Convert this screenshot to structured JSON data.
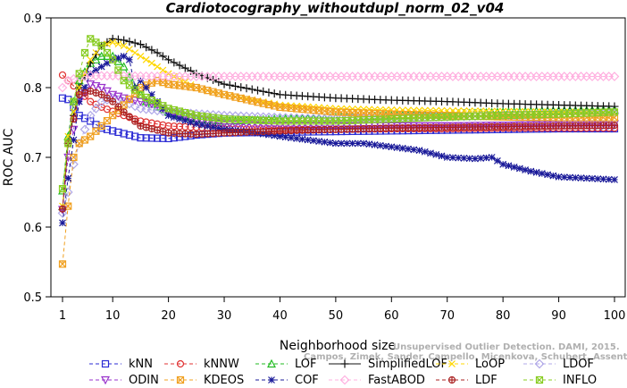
{
  "chart_data": {
    "type": "line",
    "title": "Cardiotocography_withoutdupl_norm_02_v04",
    "xlabel": "Neighborhood size",
    "ylabel": "ROC AUC",
    "xlim": [
      1,
      100
    ],
    "ylim": [
      0.5,
      0.9
    ],
    "x_ticks": [
      "1",
      "10",
      "20",
      "30",
      "40",
      "50",
      "60",
      "70",
      "80",
      "90",
      "100"
    ],
    "y_ticks": [
      "0.5",
      "0.6",
      "0.7",
      "0.8",
      "0.9"
    ],
    "grid": false,
    "legend_position": "bottom",
    "watermark": [
      "Campos, Zimek, Sander, Campello, Micenkova, Schubert, Assent, Houle",
      "Unsupervised Outlier Detection. DAMI, 2015."
    ],
    "series": [
      {
        "name": "kNN",
        "color": "#2b2bd4",
        "marker": "square",
        "dash": "4,3",
        "points": [
          [
            1,
            0.785
          ],
          [
            2,
            0.783
          ],
          [
            4,
            0.76
          ],
          [
            6,
            0.752
          ],
          [
            8,
            0.742
          ],
          [
            10,
            0.738
          ],
          [
            15,
            0.728
          ],
          [
            20,
            0.727
          ],
          [
            25,
            0.732
          ],
          [
            30,
            0.735
          ],
          [
            40,
            0.736
          ],
          [
            50,
            0.737
          ],
          [
            60,
            0.738
          ],
          [
            70,
            0.739
          ],
          [
            80,
            0.74
          ],
          [
            90,
            0.741
          ],
          [
            100,
            0.741
          ]
        ]
      },
      {
        "name": "kNNW",
        "color": "#e03030",
        "marker": "circle",
        "dash": "4,3",
        "points": [
          [
            1,
            0.818
          ],
          [
            2,
            0.81
          ],
          [
            4,
            0.795
          ],
          [
            6,
            0.78
          ],
          [
            8,
            0.772
          ],
          [
            10,
            0.766
          ],
          [
            12,
            0.76
          ],
          [
            15,
            0.752
          ],
          [
            20,
            0.745
          ],
          [
            30,
            0.741
          ],
          [
            40,
            0.74
          ],
          [
            50,
            0.74
          ],
          [
            60,
            0.741
          ],
          [
            70,
            0.741
          ],
          [
            80,
            0.742
          ],
          [
            90,
            0.742
          ],
          [
            100,
            0.742
          ]
        ]
      },
      {
        "name": "LOF",
        "color": "#22bb22",
        "marker": "triangle-up",
        "dash": "4,3",
        "points": [
          [
            1,
            0.652
          ],
          [
            2,
            0.73
          ],
          [
            3,
            0.78
          ],
          [
            4,
            0.81
          ],
          [
            6,
            0.835
          ],
          [
            8,
            0.845
          ],
          [
            10,
            0.845
          ],
          [
            12,
            0.83
          ],
          [
            14,
            0.8
          ],
          [
            16,
            0.78
          ],
          [
            20,
            0.765
          ],
          [
            25,
            0.755
          ],
          [
            30,
            0.752
          ],
          [
            40,
            0.755
          ],
          [
            50,
            0.757
          ],
          [
            60,
            0.76
          ],
          [
            70,
            0.762
          ],
          [
            80,
            0.765
          ],
          [
            90,
            0.767
          ],
          [
            100,
            0.768
          ]
        ]
      },
      {
        "name": "SimplifiedLOF",
        "color": "#111111",
        "marker": "plus",
        "dash": "",
        "points": [
          [
            1,
            0.625
          ],
          [
            2,
            0.72
          ],
          [
            4,
            0.8
          ],
          [
            6,
            0.835
          ],
          [
            8,
            0.86
          ],
          [
            10,
            0.87
          ],
          [
            12,
            0.868
          ],
          [
            15,
            0.862
          ],
          [
            18,
            0.85
          ],
          [
            20,
            0.84
          ],
          [
            25,
            0.82
          ],
          [
            30,
            0.805
          ],
          [
            40,
            0.79
          ],
          [
            50,
            0.785
          ],
          [
            60,
            0.782
          ],
          [
            70,
            0.78
          ],
          [
            80,
            0.777
          ],
          [
            90,
            0.775
          ],
          [
            100,
            0.773
          ]
        ]
      },
      {
        "name": "LoOP",
        "color": "#ffd700",
        "marker": "x",
        "dash": "4,3",
        "points": [
          [
            1,
            0.63
          ],
          [
            2,
            0.73
          ],
          [
            4,
            0.8
          ],
          [
            6,
            0.84
          ],
          [
            8,
            0.86
          ],
          [
            10,
            0.865
          ],
          [
            12,
            0.86
          ],
          [
            15,
            0.845
          ],
          [
            18,
            0.83
          ],
          [
            20,
            0.82
          ],
          [
            25,
            0.8
          ],
          [
            30,
            0.79
          ],
          [
            40,
            0.775
          ],
          [
            50,
            0.77
          ],
          [
            60,
            0.768
          ],
          [
            70,
            0.767
          ],
          [
            80,
            0.766
          ],
          [
            90,
            0.765
          ],
          [
            100,
            0.765
          ]
        ]
      },
      {
        "name": "LDOF",
        "color": "#b0a8e8",
        "marker": "diamond",
        "dash": "4,3",
        "points": [
          [
            1,
            0.62
          ],
          [
            2,
            0.65
          ],
          [
            3,
            0.69
          ],
          [
            4,
            0.72
          ],
          [
            6,
            0.76
          ],
          [
            8,
            0.78
          ],
          [
            10,
            0.785
          ],
          [
            12,
            0.78
          ],
          [
            15,
            0.77
          ],
          [
            20,
            0.765
          ],
          [
            30,
            0.76
          ],
          [
            40,
            0.757
          ],
          [
            50,
            0.755
          ],
          [
            60,
            0.757
          ],
          [
            70,
            0.758
          ],
          [
            80,
            0.76
          ],
          [
            90,
            0.762
          ],
          [
            100,
            0.763
          ]
        ]
      },
      {
        "name": "ODIN",
        "color": "#9933cc",
        "marker": "triangle-down",
        "dash": "4,3",
        "points": [
          [
            1,
            0.625
          ],
          [
            2,
            0.7
          ],
          [
            4,
            0.78
          ],
          [
            6,
            0.805
          ],
          [
            8,
            0.8
          ],
          [
            10,
            0.79
          ],
          [
            12,
            0.785
          ],
          [
            15,
            0.78
          ],
          [
            18,
            0.775
          ],
          [
            20,
            0.765
          ],
          [
            25,
            0.755
          ],
          [
            30,
            0.748
          ],
          [
            40,
            0.745
          ],
          [
            50,
            0.745
          ],
          [
            60,
            0.745
          ],
          [
            70,
            0.745
          ],
          [
            80,
            0.746
          ],
          [
            90,
            0.747
          ],
          [
            100,
            0.748
          ]
        ]
      },
      {
        "name": "KDEOS",
        "color": "#f0a020",
        "marker": "square-x",
        "dash": "4,3",
        "points": [
          [
            1,
            0.547
          ],
          [
            2,
            0.63
          ],
          [
            3,
            0.7
          ],
          [
            4,
            0.72
          ],
          [
            6,
            0.73
          ],
          [
            8,
            0.745
          ],
          [
            10,
            0.76
          ],
          [
            12,
            0.775
          ],
          [
            15,
            0.8
          ],
          [
            18,
            0.81
          ],
          [
            20,
            0.805
          ],
          [
            25,
            0.8
          ],
          [
            30,
            0.79
          ],
          [
            40,
            0.772
          ],
          [
            50,
            0.765
          ],
          [
            60,
            0.762
          ],
          [
            70,
            0.76
          ],
          [
            80,
            0.758
          ],
          [
            90,
            0.757
          ],
          [
            100,
            0.757
          ]
        ]
      },
      {
        "name": "COF",
        "color": "#1a1a99",
        "marker": "star",
        "dash": "4,3",
        "points": [
          [
            1,
            0.606
          ],
          [
            2,
            0.67
          ],
          [
            4,
            0.78
          ],
          [
            6,
            0.82
          ],
          [
            8,
            0.83
          ],
          [
            10,
            0.84
          ],
          [
            12,
            0.845
          ],
          [
            13,
            0.84
          ],
          [
            14,
            0.8
          ],
          [
            15,
            0.81
          ],
          [
            17,
            0.79
          ],
          [
            20,
            0.76
          ],
          [
            25,
            0.748
          ],
          [
            30,
            0.74
          ],
          [
            35,
            0.736
          ],
          [
            40,
            0.73
          ],
          [
            45,
            0.725
          ],
          [
            50,
            0.72
          ],
          [
            55,
            0.72
          ],
          [
            60,
            0.715
          ],
          [
            65,
            0.71
          ],
          [
            70,
            0.7
          ],
          [
            75,
            0.698
          ],
          [
            78,
            0.7
          ],
          [
            80,
            0.69
          ],
          [
            85,
            0.68
          ],
          [
            90,
            0.672
          ],
          [
            95,
            0.67
          ],
          [
            100,
            0.668
          ]
        ]
      },
      {
        "name": "FastABOD",
        "color": "#ffb0e0",
        "marker": "diamond",
        "dash": "4,3",
        "points": [
          [
            1,
            0.8
          ],
          [
            2,
            0.81
          ],
          [
            4,
            0.815
          ],
          [
            6,
            0.817
          ],
          [
            10,
            0.817
          ],
          [
            20,
            0.816
          ],
          [
            30,
            0.816
          ],
          [
            40,
            0.816
          ],
          [
            50,
            0.816
          ],
          [
            60,
            0.816
          ],
          [
            70,
            0.816
          ],
          [
            80,
            0.816
          ],
          [
            90,
            0.816
          ],
          [
            100,
            0.816
          ]
        ]
      },
      {
        "name": "LDF",
        "color": "#aa2222",
        "marker": "circle-plus",
        "dash": "4,3",
        "points": [
          [
            1,
            0.626
          ],
          [
            2,
            0.72
          ],
          [
            4,
            0.79
          ],
          [
            6,
            0.795
          ],
          [
            8,
            0.79
          ],
          [
            10,
            0.78
          ],
          [
            12,
            0.765
          ],
          [
            15,
            0.745
          ],
          [
            20,
            0.735
          ],
          [
            25,
            0.733
          ],
          [
            30,
            0.735
          ],
          [
            40,
            0.738
          ],
          [
            50,
            0.74
          ],
          [
            60,
            0.742
          ],
          [
            70,
            0.743
          ],
          [
            80,
            0.744
          ],
          [
            90,
            0.745
          ],
          [
            100,
            0.746
          ]
        ]
      },
      {
        "name": "INFLO",
        "color": "#88cc22",
        "marker": "square-x",
        "dash": "4,3",
        "points": [
          [
            1,
            0.655
          ],
          [
            2,
            0.72
          ],
          [
            3,
            0.78
          ],
          [
            4,
            0.82
          ],
          [
            5,
            0.85
          ],
          [
            6,
            0.87
          ],
          [
            8,
            0.86
          ],
          [
            10,
            0.84
          ],
          [
            12,
            0.81
          ],
          [
            15,
            0.79
          ],
          [
            20,
            0.77
          ],
          [
            25,
            0.76
          ],
          [
            30,
            0.755
          ],
          [
            40,
            0.752
          ],
          [
            50,
            0.752
          ],
          [
            60,
            0.755
          ],
          [
            70,
            0.758
          ],
          [
            80,
            0.76
          ],
          [
            90,
            0.762
          ],
          [
            100,
            0.765
          ]
        ]
      }
    ]
  }
}
